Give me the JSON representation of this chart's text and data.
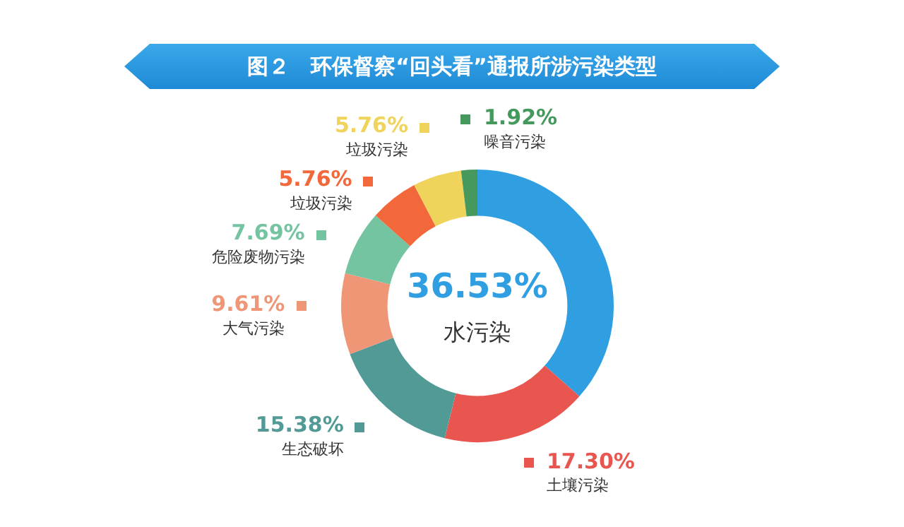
{
  "chart_data": {
    "type": "donut",
    "title": "图２　环保督察“回头看”通报所涉污染类型",
    "categories": [
      "水污染",
      "土壤污染",
      "生态破坏",
      "大气污染",
      "危险废物污染",
      "垃圾污染",
      "垃圾污染",
      "噪音污染"
    ],
    "values": [
      36.53,
      17.3,
      15.38,
      9.61,
      7.69,
      5.76,
      5.76,
      1.92
    ],
    "colors": [
      "#2f9fe2",
      "#e9554f",
      "#519a95",
      "#ef9676",
      "#74c4a2",
      "#f2683a",
      "#f0d35a",
      "#45995c"
    ],
    "value_labels": [
      "36.53%",
      "17.30%",
      "15.38%",
      "9.61%",
      "7.69%",
      "5.76%",
      "5.76%",
      "1.92%"
    ],
    "legend": false
  }
}
